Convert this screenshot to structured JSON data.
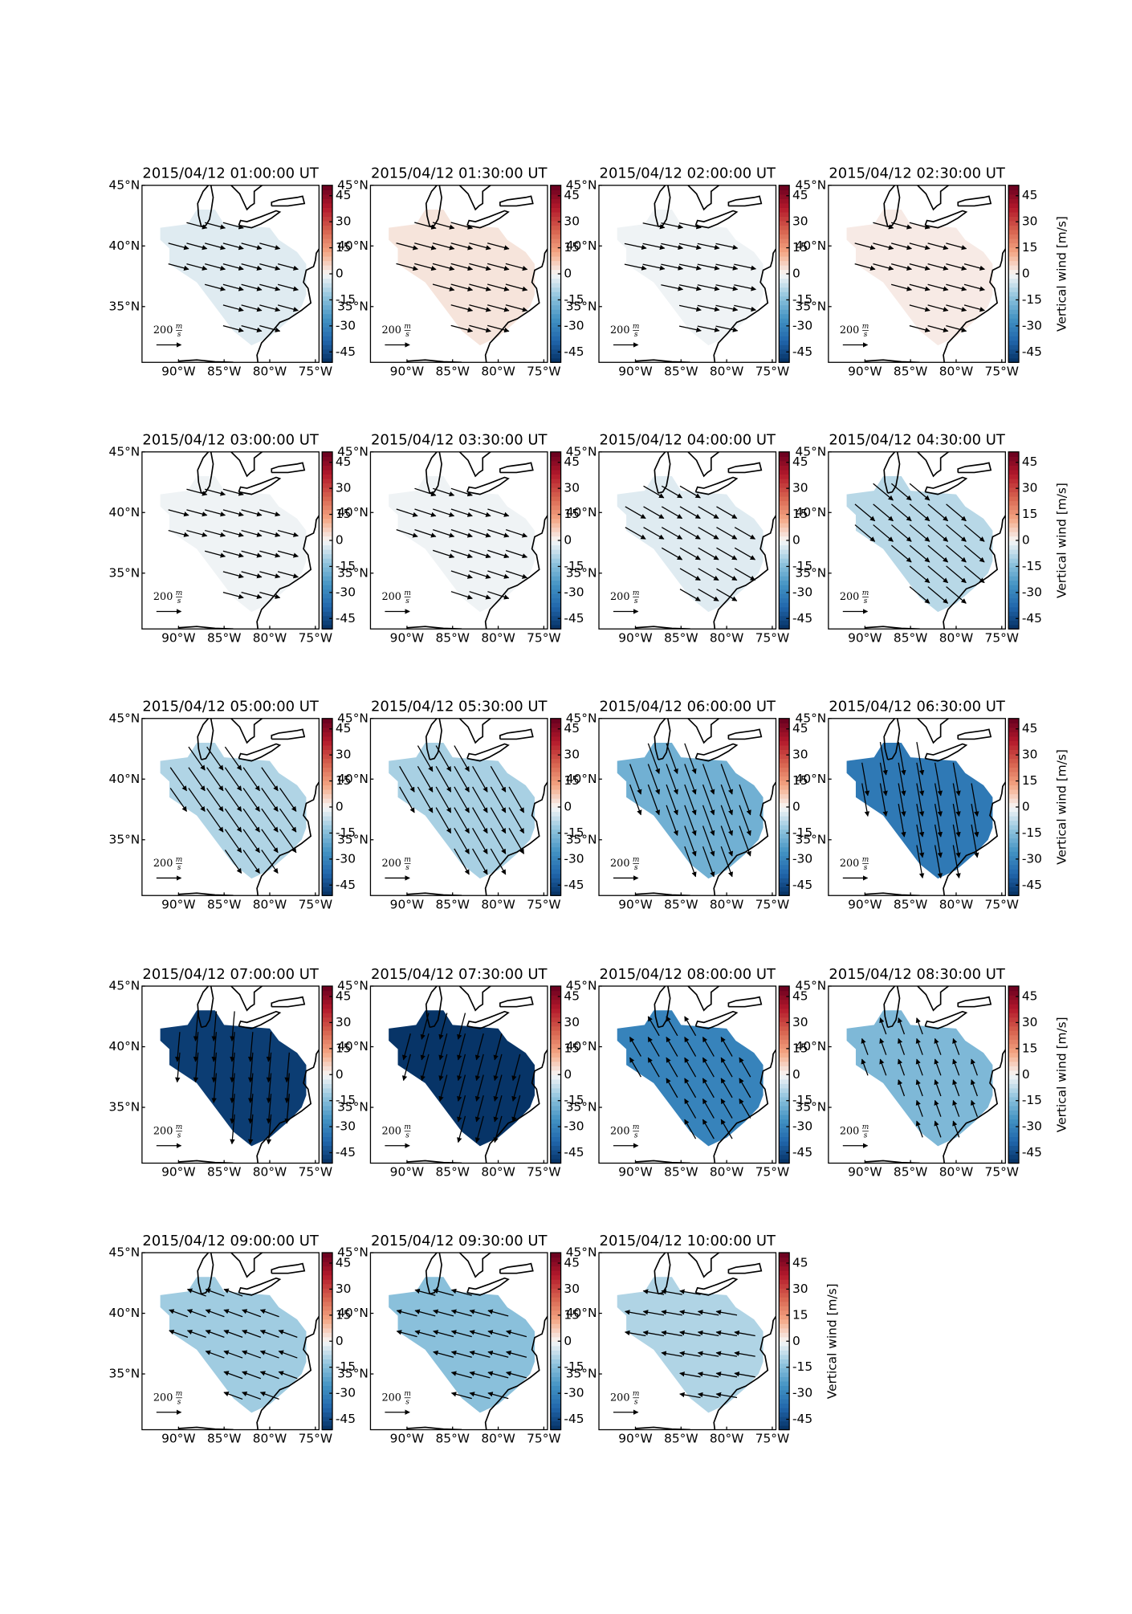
{
  "colormap": "RdBu_r",
  "clim": [
    -51,
    51
  ],
  "colorbar_ticks": [
    -45,
    -30,
    -15,
    0,
    15,
    30,
    45
  ],
  "colorbar_label": "Vertical wind [m/s]",
  "xlim": [
    -94,
    -74.6
  ],
  "ylim": [
    30.4,
    45
  ],
  "xticks": [
    {
      "value": -90,
      "label": "90°W"
    },
    {
      "value": -85,
      "label": "85°W"
    },
    {
      "value": -80,
      "label": "80°W"
    },
    {
      "value": -75,
      "label": "75°W"
    }
  ],
  "yticks": [
    {
      "value": 35,
      "label": "35°N"
    },
    {
      "value": 40,
      "label": "40°N"
    },
    {
      "value": 45,
      "label": "45°N"
    }
  ],
  "arrow_key": 200,
  "arrow_key_units": [
    "m",
    "s"
  ],
  "panels": [
    {
      "title": "2015/04/12 01:00:00 UT",
      "vertical_wind": -3,
      "wind_direction": -15,
      "wind_speed": 170
    },
    {
      "title": "2015/04/12 01:30:00 UT",
      "vertical_wind": 3,
      "wind_direction": -15,
      "wind_speed": 180
    },
    {
      "title": "2015/04/12 02:00:00 UT",
      "vertical_wind": -1,
      "wind_direction": -12,
      "wind_speed": 180
    },
    {
      "title": "2015/04/12 02:30:00 UT",
      "vertical_wind": 2,
      "wind_direction": -15,
      "wind_speed": 170,
      "show_colorbar_label": true
    },
    {
      "title": "2015/04/12 03:00:00 UT",
      "vertical_wind": -1,
      "wind_direction": -15,
      "wind_speed": 170
    },
    {
      "title": "2015/04/12 03:30:00 UT",
      "vertical_wind": -1,
      "wind_direction": -18,
      "wind_speed": 180
    },
    {
      "title": "2015/04/12 04:00:00 UT",
      "vertical_wind": -3,
      "wind_direction": -30,
      "wind_speed": 190
    },
    {
      "title": "2015/04/12 04:30:00 UT",
      "vertical_wind": -8,
      "wind_direction": -40,
      "wind_speed": 210,
      "show_colorbar_label": true
    },
    {
      "title": "2015/04/12 05:00:00 UT",
      "vertical_wind": -9,
      "wind_direction": -55,
      "wind_speed": 230
    },
    {
      "title": "2015/04/12 05:30:00 UT",
      "vertical_wind": -10,
      "wind_direction": -60,
      "wind_speed": 240
    },
    {
      "title": "2015/04/12 06:00:00 UT",
      "vertical_wind": -18,
      "wind_direction": -70,
      "wind_speed": 260
    },
    {
      "title": "2015/04/12 06:30:00 UT",
      "vertical_wind": -33,
      "wind_direction": -80,
      "wind_speed": 270,
      "show_colorbar_label": true
    },
    {
      "title": "2015/04/12 07:00:00 UT",
      "vertical_wind": -48,
      "wind_direction": -95,
      "wind_speed": 240
    },
    {
      "title": "2015/04/12 07:30:00 UT",
      "vertical_wind": -50,
      "wind_direction": -105,
      "wind_speed": 220
    },
    {
      "title": "2015/04/12 08:00:00 UT",
      "vertical_wind": -30,
      "wind_direction": 120,
      "wind_speed": 180
    },
    {
      "title": "2015/04/12 08:30:00 UT",
      "vertical_wind": -16,
      "wind_direction": 110,
      "wind_speed": 140,
      "show_colorbar_label": true
    },
    {
      "title": "2015/04/12 09:00:00 UT",
      "vertical_wind": -11,
      "wind_direction": 160,
      "wind_speed": 160
    },
    {
      "title": "2015/04/12 09:30:00 UT",
      "vertical_wind": -14,
      "wind_direction": 165,
      "wind_speed": 170
    },
    {
      "title": "2015/04/12 10:00:00 UT",
      "vertical_wind": -9,
      "wind_direction": 170,
      "wind_speed": 170,
      "show_colorbar_label": true
    }
  ]
}
